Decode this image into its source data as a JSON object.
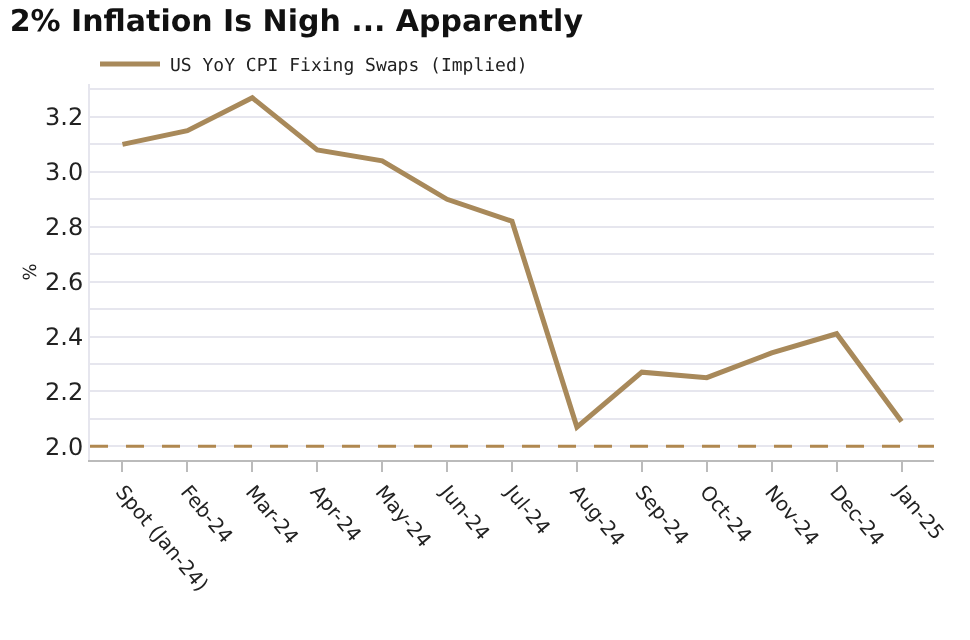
{
  "chart_data": {
    "type": "line",
    "title": "2% Inflation Is Nigh ... Apparently",
    "ylabel": "%",
    "categories": [
      "Spot (Jan-24)",
      "Feb-24",
      "Mar-24",
      "Apr-24",
      "May-24",
      "Jun-24",
      "Jul-24",
      "Aug-24",
      "Sep-24",
      "Oct-24",
      "Nov-24",
      "Dec-24",
      "Jan-25"
    ],
    "series": [
      {
        "name": "US YoY CPI Fixing Swaps (Implied)",
        "color": "#a8895a",
        "values": [
          3.1,
          3.15,
          3.27,
          3.08,
          3.04,
          2.9,
          2.82,
          2.07,
          2.27,
          2.25,
          2.34,
          2.41,
          2.09
        ]
      }
    ],
    "ylim": [
      1.95,
      3.32
    ],
    "yticks": [
      {
        "value": 2,
        "label": "2.0"
      },
      {
        "value": 2.1,
        "label": null
      },
      {
        "value": 2.2,
        "label": "2.2"
      },
      {
        "value": 2.3,
        "label": null
      },
      {
        "value": 2.4,
        "label": "2.4"
      },
      {
        "value": 2.5,
        "label": null
      },
      {
        "value": 2.6,
        "label": "2.6"
      },
      {
        "value": 2.7,
        "label": null
      },
      {
        "value": 2.8,
        "label": "2.8"
      },
      {
        "value": 2.9,
        "label": null
      },
      {
        "value": 3,
        "label": "3.0"
      },
      {
        "value": 3.1,
        "label": null
      },
      {
        "value": 3.2,
        "label": "3.2"
      },
      {
        "value": 3.3,
        "label": null
      }
    ],
    "ref_lines": [
      {
        "axis": "y",
        "value": 2.0,
        "color": "#b08850",
        "line_style": "dashed"
      }
    ],
    "grid": "y",
    "legend": "top left",
    "marker": "none",
    "line_style": "solid"
  }
}
